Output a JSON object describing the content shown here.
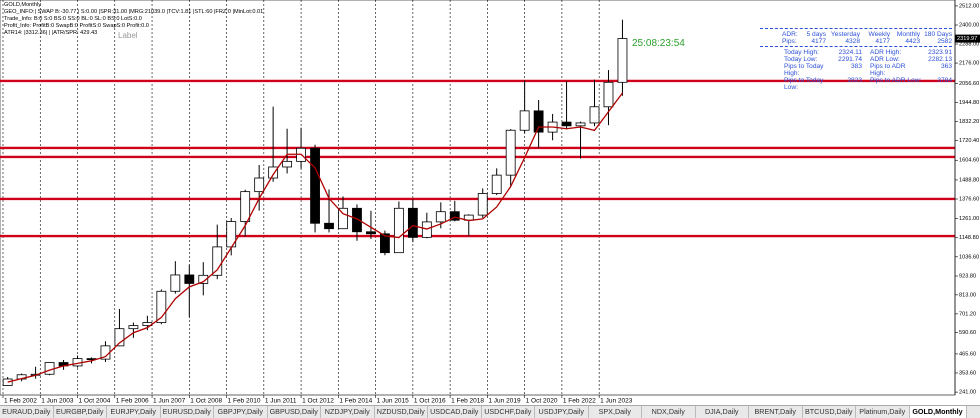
{
  "header": {
    "symbol": "GOLD,Monthly",
    "lines": [
      "GEO_INFO:| SWAP B:-30.77 | S:0.00 |SPR:31.00 |MRG:21039.0 |TCV:1.81 |STL:60 |FRZ:0 |MinLot:0.01",
      "Trade_Info: B:0 S:0 BS:0 SS:0 BL:0 SL:0 BS:0 LotS:0.0",
      "Profit_Info: ProfitB:0 SwapB:0 ProfitS:0 SwapS:0 Profit:0.0",
      "ATR14: |3312.36| | |ATR/SPR: 429.43"
    ],
    "label": "Label",
    "countdown": "25:08:23:54"
  },
  "chart_data": {
    "type": "candlestick",
    "x": [
      2002.25,
      2002.75,
      2003.25,
      2003.75,
      2004.25,
      2004.75,
      2005.25,
      2005.75,
      2006.25,
      2006.75,
      2007.25,
      2007.75,
      2008.25,
      2008.75,
      2009.25,
      2009.75,
      2010.25,
      2010.75,
      2011.25,
      2011.75,
      2012.25,
      2012.75,
      2013.25,
      2013.75,
      2014.25,
      2014.75,
      2015.25,
      2015.75,
      2016.25,
      2016.75,
      2017.25,
      2017.75,
      2018.25,
      2018.75,
      2019.25,
      2019.75,
      2020.25,
      2020.75,
      2021.25,
      2021.75,
      2022.25,
      2022.75,
      2023.25,
      2023.75,
      2024.25
    ],
    "open": [
      280,
      318,
      343,
      346,
      415,
      395,
      438,
      435,
      513,
      614,
      632,
      650,
      834,
      930,
      880,
      928,
      1095,
      1244,
      1420,
      1500,
      1565,
      1598,
      1675,
      1234,
      1202,
      1322,
      1184,
      1172,
      1061,
      1322,
      1151,
      1242,
      1302,
      1252,
      1282,
      1409,
      1517,
      1781,
      1895,
      1770,
      1829,
      1807,
      1824,
      1919,
      2063
    ],
    "high": [
      330,
      350,
      390,
      417,
      430,
      456,
      445,
      540,
      730,
      650,
      690,
      845,
      1011,
      990,
      1005,
      1226,
      1265,
      1431,
      1577,
      1920,
      1790,
      1796,
      1696,
      1433,
      1392,
      1345,
      1307,
      1191,
      1362,
      1375,
      1296,
      1357,
      1366,
      1287,
      1439,
      1557,
      1788,
      2075,
      1959,
      1877,
      2070,
      1832,
      2079,
      2135,
      2431
    ],
    "low": [
      278,
      305,
      320,
      340,
      372,
      385,
      410,
      418,
      510,
      560,
      605,
      640,
      820,
      681,
      810,
      905,
      1045,
      1157,
      1308,
      1478,
      1527,
      1555,
      1180,
      1180,
      1200,
      1131,
      1142,
      1046,
      1060,
      1123,
      1146,
      1204,
      1245,
      1160,
      1266,
      1400,
      1451,
      1764,
      1677,
      1722,
      1787,
      1615,
      1805,
      1811,
      1984
    ],
    "close": [
      318,
      343,
      346,
      415,
      395,
      438,
      435,
      513,
      614,
      632,
      650,
      834,
      930,
      880,
      928,
      1095,
      1244,
      1420,
      1500,
      1565,
      1598,
      1675,
      1234,
      1202,
      1322,
      1184,
      1172,
      1061,
      1322,
      1151,
      1242,
      1302,
      1252,
      1282,
      1409,
      1517,
      1781,
      1895,
      1770,
      1829,
      1807,
      1824,
      1919,
      2063,
      2320
    ],
    "ma": [
      300,
      320,
      340,
      370,
      395,
      410,
      425,
      450,
      530,
      590,
      620,
      680,
      790,
      860,
      890,
      960,
      1090,
      1220,
      1380,
      1520,
      1640,
      1640,
      1560,
      1380,
      1290,
      1260,
      1210,
      1160,
      1150,
      1220,
      1200,
      1230,
      1270,
      1250,
      1260,
      1330,
      1450,
      1620,
      1800,
      1800,
      1790,
      1800,
      1780,
      1890,
      2000
    ],
    "ma_color": "#b00000",
    "level_color": "#d0021b",
    "levels": [
      2071,
      1677,
      1624,
      1377,
      1159
    ],
    "last_price": 2319.97,
    "xlim": [
      2001.976,
      2036.15
    ],
    "ylim": [
      224,
      2547
    ],
    "xticks": [
      {
        "value": 2002.083,
        "label": "1 Feb 2002"
      },
      {
        "value": 2003.417,
        "label": "1 Jun 2003"
      },
      {
        "value": 2004.75,
        "label": "1 Oct 2004"
      },
      {
        "value": 2006.083,
        "label": "1 Feb 2006"
      },
      {
        "value": 2007.417,
        "label": "1 Jun 2007"
      },
      {
        "value": 2008.75,
        "label": "1 Oct 2008"
      },
      {
        "value": 2010.083,
        "label": "1 Feb 2010"
      },
      {
        "value": 2011.417,
        "label": "1 Jun 2011"
      },
      {
        "value": 2012.75,
        "label": "1 Oct 2012"
      },
      {
        "value": 2014.083,
        "label": "1 Feb 2014"
      },
      {
        "value": 2015.417,
        "label": "1 Jun 2015"
      },
      {
        "value": 2016.75,
        "label": "1 Oct 2016"
      },
      {
        "value": 2018.083,
        "label": "1 Feb 2018"
      },
      {
        "value": 2019.417,
        "label": "1 Jun 2019"
      },
      {
        "value": 2020.75,
        "label": "1 Oct 2020"
      },
      {
        "value": 2022.083,
        "label": "1 Feb 2022"
      },
      {
        "value": 2023.417,
        "label": "1 Jun 2023"
      }
    ],
    "yticks": [
      {
        "value": 2512,
        "label": "2512.00"
      },
      {
        "value": 2400,
        "label": "2400.00"
      },
      {
        "value": 2288,
        "label": "2288.00"
      },
      {
        "value": 2176,
        "label": "2176.00"
      },
      {
        "value": 2056.6,
        "label": "2056.60"
      },
      {
        "value": 1944.8,
        "label": "1944.80"
      },
      {
        "value": 1832.2,
        "label": "1832.20"
      },
      {
        "value": 1720.4,
        "label": "1720.40"
      },
      {
        "value": 1604.6,
        "label": "1604.60"
      },
      {
        "value": 1488.8,
        "label": "1488.80"
      },
      {
        "value": 1376.6,
        "label": "1376.60"
      },
      {
        "value": 1261,
        "label": "1261.00"
      },
      {
        "value": 1148.8,
        "label": "1148.80"
      },
      {
        "value": 1036.6,
        "label": "1036.60"
      },
      {
        "value": 923.8,
        "label": "923.80"
      },
      {
        "value": 813,
        "label": "813.00"
      },
      {
        "value": 701.2,
        "label": "701.20"
      },
      {
        "value": 590.6,
        "label": "590.60"
      },
      {
        "value": 465.6,
        "label": "465.60"
      },
      {
        "value": 353.6,
        "label": "353.60"
      },
      {
        "value": 241,
        "label": "241.00"
      }
    ]
  },
  "adr_panel": {
    "header": [
      "ADR:",
      "5 days",
      "Yesterday",
      "Weekly",
      "Monthly",
      "180 Days"
    ],
    "pips": [
      "Pips:",
      "4177",
      "4328",
      "4177",
      "4423",
      "2582"
    ],
    "rows": [
      [
        "Today High:",
        "2324.11",
        "ADR High:",
        "2323.91"
      ],
      [
        "Today Low:",
        "2291.74",
        "ADR Low:",
        "2282.13"
      ],
      [
        "Pips to Today High:",
        "383",
        "Pips to ADR High:",
        "363"
      ],
      [
        "Pips to Today Low:",
        "2823",
        "Pips to ADR Low:",
        "3784"
      ]
    ]
  },
  "tabs": [
    "EURAUD,Daily",
    "EURGBP,Daily",
    "EURJPY,Daily",
    "EURUSD,Daily",
    "GBPJPY,Daily",
    "GBPUSD,Daily",
    "NZDJPY,Daily",
    "NZDUSD,Daily",
    "USDCAD,Daily",
    "USDCHF,Daily",
    "USDJPY,Daily",
    "SPX,Daily",
    "NDX,Daily",
    "DJIA,Daily",
    "BRENT,Daily",
    "BTCUSD,Daily",
    "Platinum,Daily",
    "GOLD,Monthly"
  ]
}
